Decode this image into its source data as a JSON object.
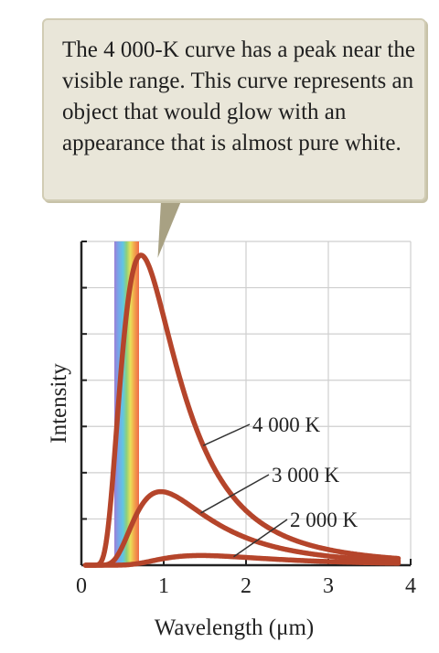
{
  "callout": {
    "text": "The 4 000-K curve has a peak near the visible range. This curve represents an object that would glow with an appearance that is almost pure white."
  },
  "chart_data": {
    "type": "line",
    "xlabel": "Wavelength (μm)",
    "ylabel": "Intensity",
    "xlim": [
      0,
      4
    ],
    "x_ticks": [
      "0",
      "1",
      "2",
      "3",
      "4"
    ],
    "grid": true,
    "visible_band_um": [
      0.4,
      0.7
    ],
    "series": [
      {
        "name": "4 000 K",
        "temperature_K": 4000,
        "color": "#b5452b"
      },
      {
        "name": "3 000 K",
        "temperature_K": 3000,
        "color": "#b5452b"
      },
      {
        "name": "2 000 K",
        "temperature_K": 2000,
        "color": "#b5452b"
      }
    ]
  },
  "colors": {
    "curve": "#b5452b",
    "pointer": "#a8a183",
    "grid": "#cfcfcf",
    "axis": "#222222"
  }
}
